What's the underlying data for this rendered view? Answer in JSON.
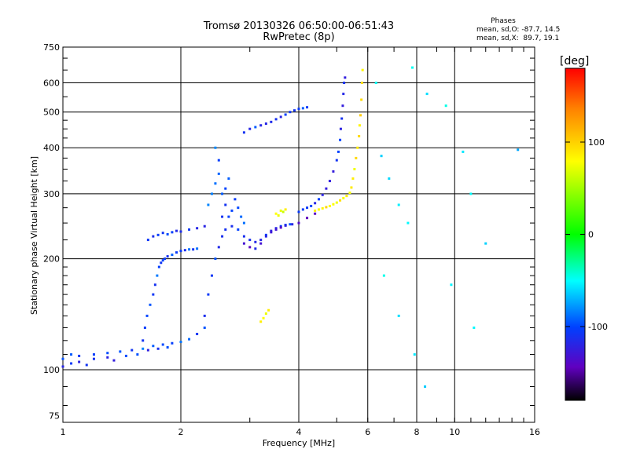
{
  "title_line1": "Tromsø 20130326 06:50:00-06:51:43",
  "title_line2": "RwPretec (8p)",
  "phases": {
    "title": "Phases",
    "line1": "mean, sd,O: -87.7, 14.5",
    "line2": "mean, sd,X:  89.7, 19.1"
  },
  "colorbar": {
    "unit": "[deg]",
    "range": [
      -180,
      180
    ],
    "ticks": [
      {
        "value": 100,
        "label": "100"
      },
      {
        "value": 0,
        "label": "0"
      },
      {
        "value": -100,
        "label": "-100"
      }
    ]
  },
  "chart_data": {
    "type": "scatter",
    "xlabel": "Frequency [MHz]",
    "ylabel": "Stationary phase Virtual Height [km]",
    "xscale": "log",
    "yscale": "log",
    "xlim": [
      1,
      16
    ],
    "ylim": [
      72,
      750
    ],
    "xticks": [
      {
        "v": 1,
        "label": "1"
      },
      {
        "v": 2,
        "label": "2"
      },
      {
        "v": 4,
        "label": "4"
      },
      {
        "v": 6,
        "label": "6"
      },
      {
        "v": 8,
        "label": "8"
      },
      {
        "v": 10,
        "label": "10"
      },
      {
        "v": 16,
        "label": "16"
      }
    ],
    "yticks": [
      {
        "v": 75,
        "label": "75"
      },
      {
        "v": 100,
        "label": "100"
      },
      {
        "v": 200,
        "label": "200"
      },
      {
        "v": 300,
        "label": "300"
      },
      {
        "v": 400,
        "label": "400"
      },
      {
        "v": 500,
        "label": "500"
      },
      {
        "v": 600,
        "label": "600"
      },
      {
        "v": 750,
        "label": "750"
      }
    ],
    "grid": true,
    "color_value": "phase [deg]",
    "series": [
      {
        "id": "trace-low-e",
        "phase": -95,
        "points": [
          [
            1.0,
            107
          ],
          [
            1.05,
            110
          ],
          [
            1.1,
            109
          ],
          [
            1.2,
            110
          ],
          [
            1.3,
            111
          ],
          [
            1.4,
            112
          ],
          [
            1.5,
            113
          ],
          [
            1.6,
            114
          ],
          [
            1.7,
            116
          ],
          [
            1.8,
            117
          ],
          [
            1.9,
            118
          ],
          [
            2.0,
            119
          ],
          [
            2.1,
            121
          ],
          [
            2.2,
            125
          ],
          [
            2.3,
            130
          ]
        ]
      },
      {
        "id": "trace-low-e-spread",
        "phase": -110,
        "points": [
          [
            1.0,
            102
          ],
          [
            1.05,
            104
          ],
          [
            1.1,
            105
          ],
          [
            1.15,
            103
          ],
          [
            1.2,
            107
          ],
          [
            1.3,
            108
          ],
          [
            1.35,
            106
          ],
          [
            1.45,
            109
          ],
          [
            1.55,
            110
          ],
          [
            1.65,
            113
          ],
          [
            1.75,
            114
          ],
          [
            1.85,
            115
          ]
        ]
      },
      {
        "id": "trace-e2",
        "phase": -100,
        "points": [
          [
            1.6,
            120
          ],
          [
            1.62,
            130
          ],
          [
            1.64,
            140
          ],
          [
            1.67,
            150
          ],
          [
            1.7,
            160
          ],
          [
            1.72,
            170
          ],
          [
            1.74,
            180
          ],
          [
            1.76,
            190
          ],
          [
            1.78,
            195
          ],
          [
            1.8,
            198
          ],
          [
            1.82,
            200
          ],
          [
            1.85,
            203
          ],
          [
            1.9,
            205
          ],
          [
            1.95,
            208
          ],
          [
            2.0,
            210
          ],
          [
            2.05,
            211
          ],
          [
            2.1,
            212
          ],
          [
            2.15,
            212
          ],
          [
            2.2,
            213
          ]
        ]
      },
      {
        "id": "trace-e2-upper",
        "phase": -105,
        "points": [
          [
            1.65,
            225
          ],
          [
            1.7,
            230
          ],
          [
            1.75,
            232
          ],
          [
            1.8,
            235
          ],
          [
            1.85,
            233
          ],
          [
            1.9,
            236
          ],
          [
            1.95,
            238
          ],
          [
            2.0,
            237
          ],
          [
            2.1,
            240
          ],
          [
            2.2,
            242
          ],
          [
            2.3,
            245
          ]
        ]
      },
      {
        "id": "trace-f1",
        "phase": -110,
        "points": [
          [
            2.3,
            140
          ],
          [
            2.35,
            160
          ],
          [
            2.4,
            180
          ],
          [
            2.45,
            200
          ],
          [
            2.5,
            215
          ],
          [
            2.55,
            230
          ],
          [
            2.6,
            240
          ],
          [
            2.7,
            245
          ],
          [
            2.8,
            240
          ],
          [
            2.9,
            230
          ],
          [
            3.0,
            225
          ],
          [
            3.1,
            222
          ],
          [
            3.2,
            225
          ],
          [
            3.3,
            232
          ],
          [
            3.4,
            238
          ],
          [
            3.5,
            242
          ],
          [
            3.6,
            245
          ],
          [
            3.7,
            247
          ],
          [
            3.8,
            248
          ]
        ]
      },
      {
        "id": "trace-f1-cluster",
        "phase": -95,
        "points": [
          [
            2.35,
            280
          ],
          [
            2.4,
            300
          ],
          [
            2.45,
            320
          ],
          [
            2.5,
            340
          ],
          [
            2.55,
            300
          ],
          [
            2.6,
            280
          ],
          [
            2.65,
            260
          ],
          [
            2.7,
            270
          ],
          [
            2.75,
            290
          ],
          [
            2.8,
            275
          ],
          [
            2.85,
            260
          ],
          [
            2.9,
            250
          ],
          [
            2.5,
            370
          ],
          [
            2.45,
            400
          ],
          [
            2.55,
            260
          ],
          [
            2.6,
            310
          ],
          [
            2.65,
            330
          ]
        ]
      },
      {
        "id": "trace-f1-violet",
        "phase": -130,
        "points": [
          [
            2.9,
            220
          ],
          [
            3.0,
            215
          ],
          [
            3.1,
            213
          ],
          [
            3.2,
            220
          ],
          [
            3.3,
            230
          ],
          [
            3.4,
            236
          ],
          [
            3.5,
            240
          ],
          [
            3.6,
            243
          ],
          [
            3.7,
            246
          ],
          [
            3.85,
            248
          ],
          [
            4.0,
            250
          ],
          [
            4.2,
            258
          ],
          [
            4.4,
            265
          ]
        ]
      },
      {
        "id": "trace-f2-o",
        "phase": -110,
        "points": [
          [
            4.0,
            268
          ],
          [
            4.1,
            272
          ],
          [
            4.2,
            275
          ],
          [
            4.3,
            278
          ],
          [
            4.4,
            283
          ],
          [
            4.5,
            290
          ],
          [
            4.6,
            298
          ],
          [
            4.7,
            310
          ],
          [
            4.8,
            325
          ],
          [
            4.9,
            345
          ],
          [
            5.0,
            370
          ],
          [
            5.05,
            390
          ],
          [
            5.1,
            420
          ],
          [
            5.12,
            450
          ],
          [
            5.15,
            480
          ],
          [
            5.18,
            520
          ],
          [
            5.2,
            560
          ],
          [
            5.22,
            600
          ],
          [
            5.25,
            620
          ]
        ]
      },
      {
        "id": "trace-f2-x",
        "phase": 90,
        "points": [
          [
            4.4,
            270
          ],
          [
            4.5,
            272
          ],
          [
            4.6,
            274
          ],
          [
            4.7,
            276
          ],
          [
            4.8,
            278
          ],
          [
            4.9,
            281
          ],
          [
            5.0,
            284
          ],
          [
            5.1,
            288
          ],
          [
            5.2,
            292
          ],
          [
            5.3,
            296
          ],
          [
            5.4,
            302
          ],
          [
            5.45,
            312
          ],
          [
            5.5,
            330
          ],
          [
            5.55,
            350
          ],
          [
            5.6,
            375
          ],
          [
            5.65,
            400
          ],
          [
            5.7,
            430
          ],
          [
            5.72,
            460
          ],
          [
            5.75,
            490
          ],
          [
            5.78,
            540
          ],
          [
            5.8,
            600
          ],
          [
            5.82,
            650
          ]
        ]
      },
      {
        "id": "trace-f-top",
        "phase": -105,
        "points": [
          [
            2.9,
            440
          ],
          [
            3.0,
            450
          ],
          [
            3.1,
            455
          ],
          [
            3.2,
            460
          ],
          [
            3.3,
            465
          ],
          [
            3.4,
            470
          ],
          [
            3.5,
            478
          ],
          [
            3.6,
            485
          ],
          [
            3.7,
            492
          ],
          [
            3.8,
            500
          ],
          [
            3.9,
            505
          ],
          [
            4.0,
            510
          ],
          [
            4.1,
            512
          ],
          [
            4.2,
            515
          ]
        ]
      },
      {
        "id": "trace-yellow-patch",
        "phase": 75,
        "points": [
          [
            3.6,
            270
          ],
          [
            3.65,
            268
          ],
          [
            3.7,
            272
          ],
          [
            3.5,
            265
          ],
          [
            3.55,
            262
          ],
          [
            3.2,
            135
          ],
          [
            3.25,
            138
          ],
          [
            3.3,
            142
          ],
          [
            3.35,
            145
          ]
        ]
      },
      {
        "id": "scatter-high-freq",
        "phase": -60,
        "points": [
          [
            6.3,
            600
          ],
          [
            6.5,
            380
          ],
          [
            6.8,
            330
          ],
          [
            7.2,
            280
          ],
          [
            7.6,
            250
          ],
          [
            7.8,
            660
          ],
          [
            8.5,
            560
          ],
          [
            9.5,
            520
          ],
          [
            10.5,
            390
          ],
          [
            11,
            300
          ],
          [
            12,
            220
          ],
          [
            14.5,
            395
          ],
          [
            6.6,
            180
          ],
          [
            7.2,
            140
          ],
          [
            7.9,
            110
          ],
          [
            8.4,
            90
          ],
          [
            9.8,
            170
          ],
          [
            11.2,
            130
          ]
        ]
      }
    ]
  }
}
